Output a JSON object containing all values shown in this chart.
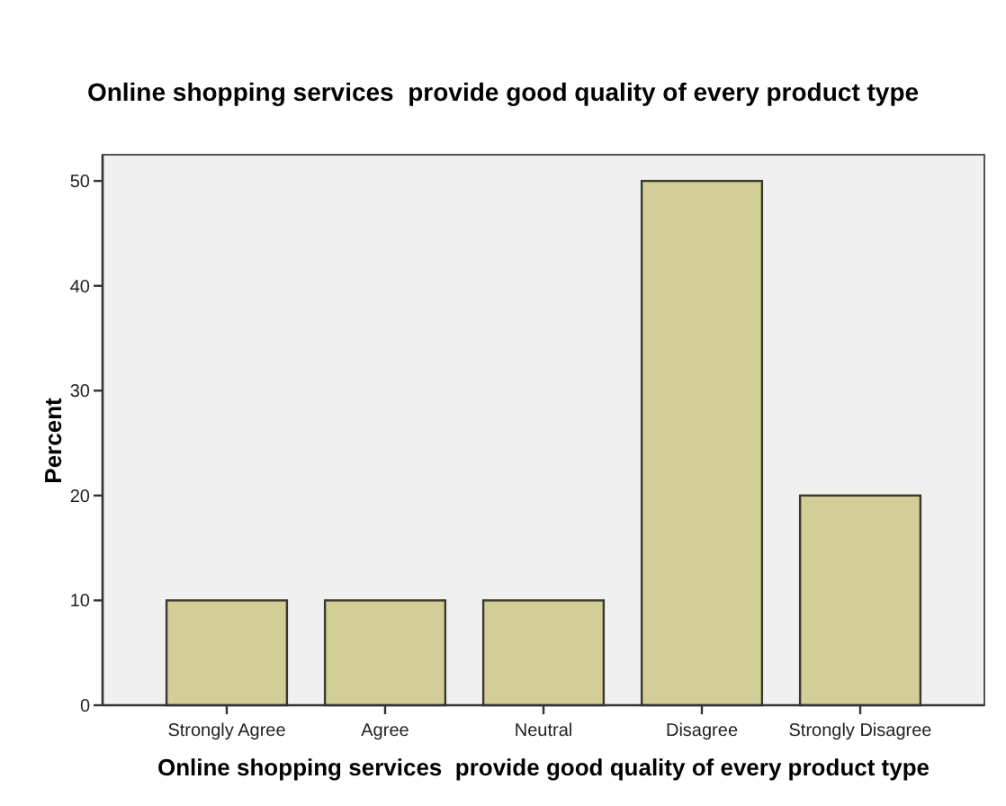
{
  "chart_data": {
    "type": "bar",
    "title": "Online shopping services  provide good quality of every product type",
    "xlabel": "Online shopping services  provide good quality of every product type",
    "ylabel": "Percent",
    "categories": [
      "Strongly Agree",
      "Agree",
      "Neutral",
      "Disagree",
      "Strongly Disagree"
    ],
    "values": [
      10,
      10,
      10,
      50,
      20
    ],
    "color": "#d3ce98",
    "ylim": [
      0,
      52.5
    ],
    "yticks": [
      0,
      10,
      20,
      30,
      40,
      50
    ]
  }
}
